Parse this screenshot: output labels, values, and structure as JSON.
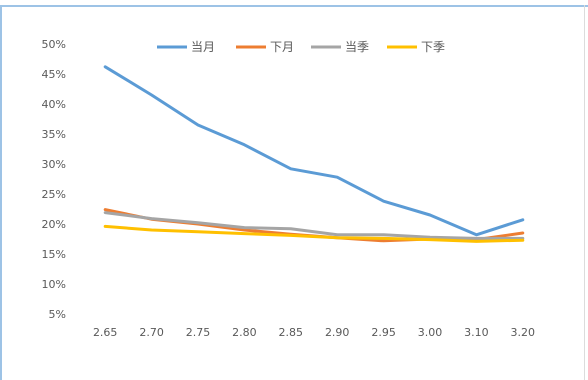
{
  "chart_data": {
    "type": "line",
    "title": "",
    "xlabel": "",
    "ylabel": "",
    "categories": [
      "2.65",
      "2.70",
      "2.75",
      "2.80",
      "2.85",
      "2.90",
      "2.95",
      "3.00",
      "3.10",
      "3.20"
    ],
    "y_ticks": [
      "5%",
      "10%",
      "15%",
      "20%",
      "25%",
      "30%",
      "35%",
      "40%",
      "45%",
      "50%"
    ],
    "ylim": [
      5,
      50
    ],
    "grid": false,
    "legend_position": "top",
    "series": [
      {
        "name": "当月",
        "color": "#5b9bd5",
        "values": [
          46.2,
          41.5,
          36.5,
          33.2,
          29.2,
          27.8,
          23.8,
          21.5,
          18.2,
          20.7
        ]
      },
      {
        "name": "下月",
        "color": "#ed7d31",
        "values": [
          22.4,
          20.8,
          20.0,
          19.0,
          18.3,
          17.7,
          17.2,
          17.5,
          17.4,
          18.5
        ]
      },
      {
        "name": "当季",
        "color": "#a5a5a5",
        "values": [
          21.9,
          20.9,
          20.2,
          19.4,
          19.2,
          18.2,
          18.2,
          17.8,
          17.6,
          17.6
        ]
      },
      {
        "name": "下季",
        "color": "#ffc000",
        "values": [
          19.6,
          19.0,
          18.7,
          18.4,
          18.1,
          17.7,
          17.6,
          17.4,
          17.1,
          17.3
        ]
      }
    ]
  }
}
